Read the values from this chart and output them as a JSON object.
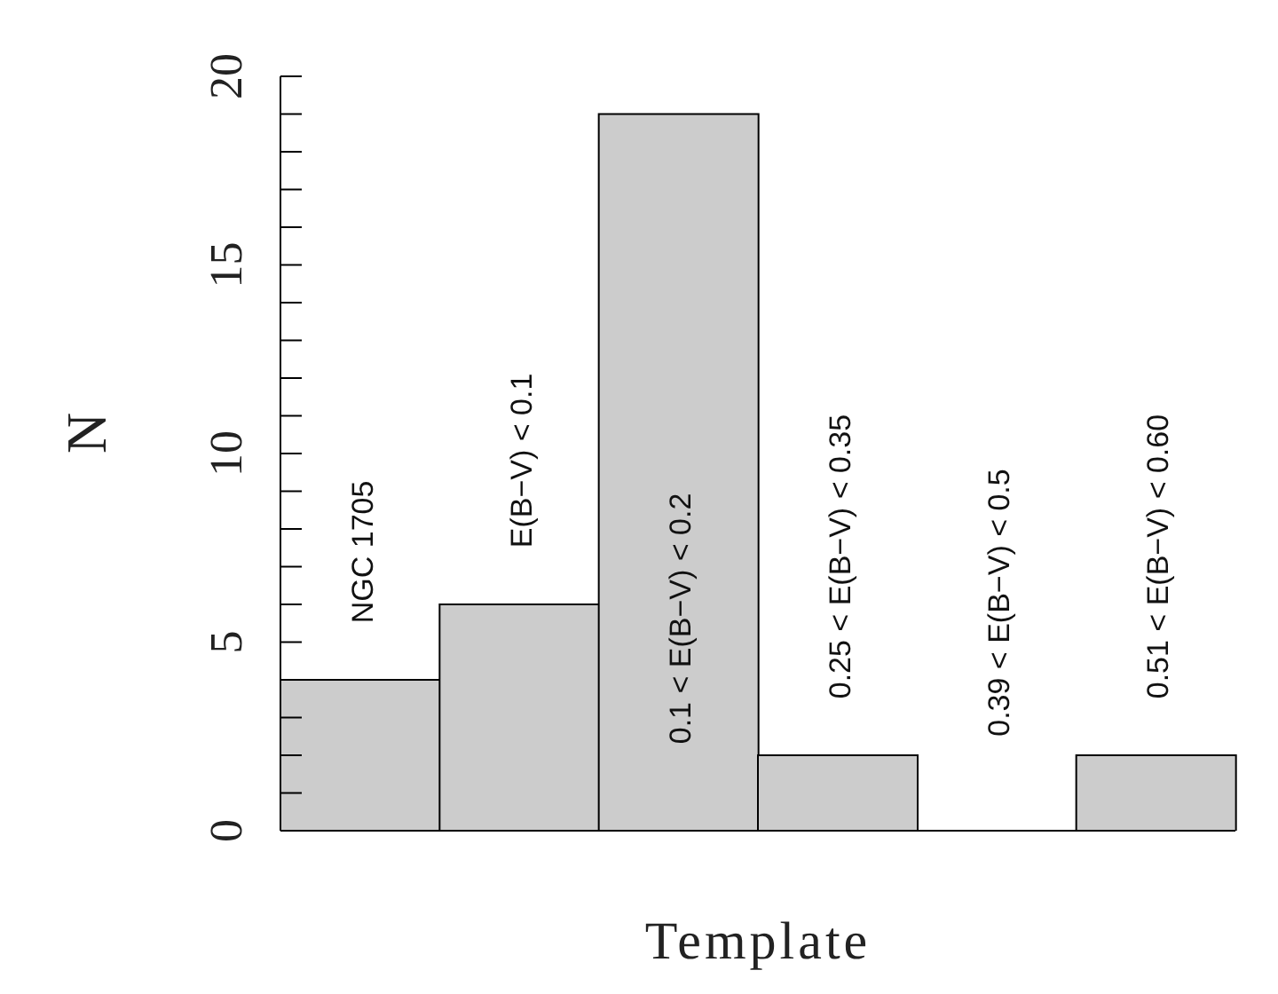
{
  "chart_data": {
    "type": "bar",
    "xlabel": "Template",
    "ylabel": "N",
    "categories": [
      "NGC 1705",
      "E(B−V) < 0.1",
      "0.1 < E(B−V) < 0.2",
      "0.25 < E(B−V) < 0.35",
      "0.39 < E(B−V) < 0.5",
      "0.51 < E(B−V) < 0.60"
    ],
    "values": [
      4,
      6,
      19,
      2,
      0,
      2
    ],
    "color": "#cccccc",
    "ylim": [
      0,
      20
    ],
    "yticks": [
      0,
      {
        "value": 1,
        "label": null
      },
      {
        "value": 2,
        "label": null
      },
      {
        "value": 3,
        "label": null
      },
      {
        "value": 4,
        "label": null
      },
      5,
      {
        "value": 6,
        "label": null
      },
      {
        "value": 7,
        "label": null
      },
      {
        "value": 8,
        "label": null
      },
      {
        "value": 9,
        "label": null
      },
      10,
      {
        "value": 11,
        "label": null
      },
      {
        "value": 12,
        "label": null
      },
      {
        "value": 13,
        "label": null
      },
      {
        "value": 14,
        "label": null
      },
      15,
      {
        "value": 16,
        "label": null
      },
      {
        "value": 17,
        "label": null
      },
      {
        "value": 18,
        "label": null
      },
      {
        "value": 19,
        "label": null
      },
      20
    ],
    "grid": false,
    "legend": false
  }
}
